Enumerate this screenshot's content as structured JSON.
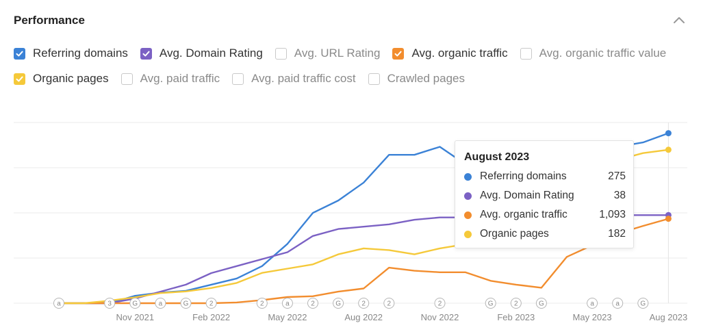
{
  "panel": {
    "title": "Performance",
    "collapse_icon": "chevron-up-icon"
  },
  "legend": {
    "row1": [
      {
        "label": "Referring domains",
        "checked": true,
        "color": "#3b82d6"
      },
      {
        "label": "Avg. Domain Rating",
        "checked": true,
        "color": "#7b61c4"
      },
      {
        "label": "Avg. URL Rating",
        "checked": false,
        "color": ""
      },
      {
        "label": "Avg. organic traffic",
        "checked": true,
        "color": "#f28d2e"
      },
      {
        "label": "Avg. organic traffic value",
        "checked": false,
        "color": ""
      }
    ],
    "row2": [
      {
        "label": "Organic pages",
        "checked": true,
        "color": "#f5c93a"
      },
      {
        "label": "Avg. paid traffic",
        "checked": false,
        "color": ""
      },
      {
        "label": "Avg. paid traffic cost",
        "checked": false,
        "color": ""
      },
      {
        "label": "Crawled pages",
        "checked": false,
        "color": ""
      }
    ]
  },
  "chart_data": {
    "type": "line",
    "x_tick_labels": [
      "Nov 2021",
      "Feb 2022",
      "May 2022",
      "Aug 2022",
      "Nov 2022",
      "Feb 2023",
      "May 2023",
      "Aug 2023"
    ],
    "x": [
      "Aug 2021",
      "Sep 2021",
      "Oct 2021",
      "Nov 2021",
      "Dec 2021",
      "Jan 2022",
      "Feb 2022",
      "Mar 2022",
      "Apr 2022",
      "May 2022",
      "Jun 2022",
      "Jul 2022",
      "Aug 2022",
      "Sep 2022",
      "Oct 2022",
      "Nov 2022",
      "Dec 2022",
      "Jan 2023",
      "Feb 2023",
      "Mar 2023",
      "Apr 2023",
      "May 2023",
      "Jun 2023",
      "Jul 2023",
      "Aug 2023"
    ],
    "grid": true,
    "series": [
      {
        "name": "Referring domains",
        "color": "#3b82d6",
        "scale_max": 300,
        "values": [
          0,
          0,
          0,
          12,
          17,
          20,
          30,
          40,
          60,
          96,
          146,
          166,
          195,
          240,
          240,
          253,
          225,
          195,
          158,
          145,
          185,
          250,
          253,
          260,
          275
        ]
      },
      {
        "name": "Avg. Domain Rating",
        "color": "#7b61c4",
        "scale_max": 80,
        "values": [
          0,
          0,
          0,
          2,
          5,
          8,
          13,
          16,
          19,
          22,
          29,
          32,
          33,
          34,
          36,
          37,
          37,
          37,
          38,
          38,
          38,
          38,
          38,
          38,
          38
        ]
      },
      {
        "name": "Avg. organic traffic",
        "color": "#f28d2e",
        "scale_max": 2400,
        "values": [
          0,
          0,
          0,
          0,
          0,
          0,
          0,
          10,
          40,
          80,
          90,
          150,
          190,
          460,
          420,
          400,
          400,
          290,
          240,
          200,
          600,
          750,
          900,
          1000,
          1093
        ]
      },
      {
        "name": "Organic pages",
        "color": "#f5c93a",
        "scale_max": 220,
        "values": [
          0,
          0,
          3,
          7,
          12,
          14,
          18,
          24,
          36,
          41,
          46,
          58,
          65,
          63,
          58,
          65,
          70,
          70,
          70,
          100,
          140,
          160,
          170,
          178,
          182
        ]
      }
    ],
    "markers": [
      {
        "x": "Aug 2021",
        "label": "a"
      },
      {
        "x": "Oct 2021",
        "label": "3"
      },
      {
        "x": "Nov 2021",
        "label": "G"
      },
      {
        "x": "Dec 2021",
        "label": "a"
      },
      {
        "x": "Jan 2022",
        "label": "G"
      },
      {
        "x": "Feb 2022",
        "label": "2"
      },
      {
        "x": "Apr 2022",
        "label": "2"
      },
      {
        "x": "May 2022",
        "label": "a"
      },
      {
        "x": "Jun 2022",
        "label": "2"
      },
      {
        "x": "Jul 2022",
        "label": "G"
      },
      {
        "x": "Aug 2022",
        "label": "2"
      },
      {
        "x": "Sep 2022",
        "label": "2"
      },
      {
        "x": "Nov 2022",
        "label": "2"
      },
      {
        "x": "Jan 2023",
        "label": "G"
      },
      {
        "x": "Feb 2023",
        "label": "2"
      },
      {
        "x": "Mar 2023",
        "label": "G"
      },
      {
        "x": "May 2023",
        "label": "a"
      },
      {
        "x": "Jun 2023",
        "label": "a"
      },
      {
        "x": "Jul 2023",
        "label": "G"
      }
    ]
  },
  "tooltip": {
    "title": "August 2023",
    "rows": [
      {
        "name": "Referring domains",
        "value": "275",
        "color": "#3b82d6"
      },
      {
        "name": "Avg. Domain Rating",
        "value": "38",
        "color": "#7b61c4"
      },
      {
        "name": "Avg. organic traffic",
        "value": "1,093",
        "color": "#f28d2e"
      },
      {
        "name": "Organic pages",
        "value": "182",
        "color": "#f5c93a"
      }
    ]
  }
}
